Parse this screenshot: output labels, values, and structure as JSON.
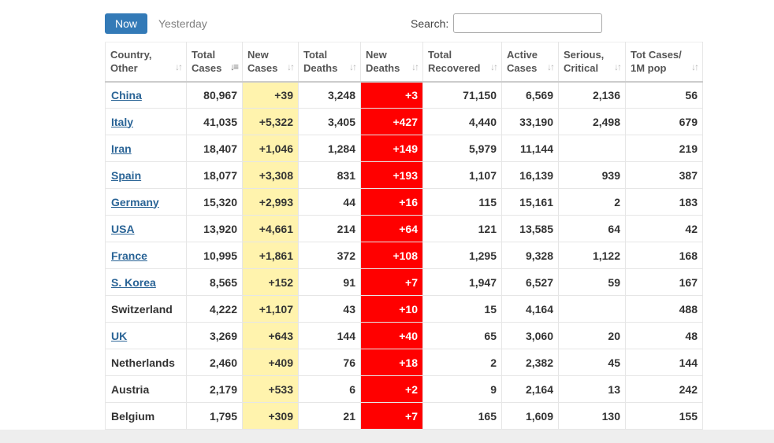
{
  "tabs": {
    "now": "Now",
    "yesterday": "Yesterday"
  },
  "search": {
    "label": "Search:",
    "value": ""
  },
  "colors": {
    "now_tab_bg": "#337ab7",
    "new_cases_bg": "#fff3ad",
    "new_deaths_bg": "#ff0000",
    "link": "#2a6496"
  },
  "table": {
    "headers": [
      {
        "line1": "Country,",
        "line2": "Other",
        "sort_icon": "sort-icon",
        "sorted": false
      },
      {
        "line1": "Total",
        "line2": "Cases",
        "sort_icon": "sort-desc-icon",
        "sorted": true
      },
      {
        "line1": "New",
        "line2": "Cases",
        "sort_icon": "sort-icon",
        "sorted": false
      },
      {
        "line1": "Total",
        "line2": "Deaths",
        "sort_icon": "sort-icon",
        "sorted": false
      },
      {
        "line1": "New",
        "line2": "Deaths",
        "sort_icon": "sort-icon",
        "sorted": false
      },
      {
        "line1": "Total",
        "line2": "Recovered",
        "sort_icon": "sort-icon",
        "sorted": false
      },
      {
        "line1": "Active",
        "line2": "Cases",
        "sort_icon": "sort-icon",
        "sorted": false
      },
      {
        "line1": "Serious,",
        "line2": "Critical",
        "sort_icon": "sort-icon",
        "sorted": false
      },
      {
        "line1": "Tot Cases/",
        "line2": "1M pop",
        "sort_icon": "sort-icon",
        "sorted": false
      }
    ],
    "rows": [
      {
        "country": "China",
        "link": true,
        "total_cases": "80,967",
        "new_cases": "+39",
        "total_deaths": "3,248",
        "new_deaths": "+3",
        "total_recovered": "71,150",
        "active_cases": "6,569",
        "serious_critical": "2,136",
        "cases_per_1m": "56"
      },
      {
        "country": "Italy",
        "link": true,
        "total_cases": "41,035",
        "new_cases": "+5,322",
        "total_deaths": "3,405",
        "new_deaths": "+427",
        "total_recovered": "4,440",
        "active_cases": "33,190",
        "serious_critical": "2,498",
        "cases_per_1m": "679"
      },
      {
        "country": "Iran",
        "link": true,
        "total_cases": "18,407",
        "new_cases": "+1,046",
        "total_deaths": "1,284",
        "new_deaths": "+149",
        "total_recovered": "5,979",
        "active_cases": "11,144",
        "serious_critical": "",
        "cases_per_1m": "219"
      },
      {
        "country": "Spain",
        "link": true,
        "total_cases": "18,077",
        "new_cases": "+3,308",
        "total_deaths": "831",
        "new_deaths": "+193",
        "total_recovered": "1,107",
        "active_cases": "16,139",
        "serious_critical": "939",
        "cases_per_1m": "387"
      },
      {
        "country": "Germany",
        "link": true,
        "total_cases": "15,320",
        "new_cases": "+2,993",
        "total_deaths": "44",
        "new_deaths": "+16",
        "total_recovered": "115",
        "active_cases": "15,161",
        "serious_critical": "2",
        "cases_per_1m": "183"
      },
      {
        "country": "USA",
        "link": true,
        "total_cases": "13,920",
        "new_cases": "+4,661",
        "total_deaths": "214",
        "new_deaths": "+64",
        "total_recovered": "121",
        "active_cases": "13,585",
        "serious_critical": "64",
        "cases_per_1m": "42"
      },
      {
        "country": "France",
        "link": true,
        "total_cases": "10,995",
        "new_cases": "+1,861",
        "total_deaths": "372",
        "new_deaths": "+108",
        "total_recovered": "1,295",
        "active_cases": "9,328",
        "serious_critical": "1,122",
        "cases_per_1m": "168"
      },
      {
        "country": "S. Korea",
        "link": true,
        "total_cases": "8,565",
        "new_cases": "+152",
        "total_deaths": "91",
        "new_deaths": "+7",
        "total_recovered": "1,947",
        "active_cases": "6,527",
        "serious_critical": "59",
        "cases_per_1m": "167"
      },
      {
        "country": "Switzerland",
        "link": false,
        "total_cases": "4,222",
        "new_cases": "+1,107",
        "total_deaths": "43",
        "new_deaths": "+10",
        "total_recovered": "15",
        "active_cases": "4,164",
        "serious_critical": "",
        "cases_per_1m": "488"
      },
      {
        "country": "UK",
        "link": true,
        "total_cases": "3,269",
        "new_cases": "+643",
        "total_deaths": "144",
        "new_deaths": "+40",
        "total_recovered": "65",
        "active_cases": "3,060",
        "serious_critical": "20",
        "cases_per_1m": "48"
      },
      {
        "country": "Netherlands",
        "link": false,
        "total_cases": "2,460",
        "new_cases": "+409",
        "total_deaths": "76",
        "new_deaths": "+18",
        "total_recovered": "2",
        "active_cases": "2,382",
        "serious_critical": "45",
        "cases_per_1m": "144"
      },
      {
        "country": "Austria",
        "link": false,
        "total_cases": "2,179",
        "new_cases": "+533",
        "total_deaths": "6",
        "new_deaths": "+2",
        "total_recovered": "9",
        "active_cases": "2,164",
        "serious_critical": "13",
        "cases_per_1m": "242"
      },
      {
        "country": "Belgium",
        "link": false,
        "total_cases": "1,795",
        "new_cases": "+309",
        "total_deaths": "21",
        "new_deaths": "+7",
        "total_recovered": "165",
        "active_cases": "1,609",
        "serious_critical": "130",
        "cases_per_1m": "155"
      }
    ]
  }
}
